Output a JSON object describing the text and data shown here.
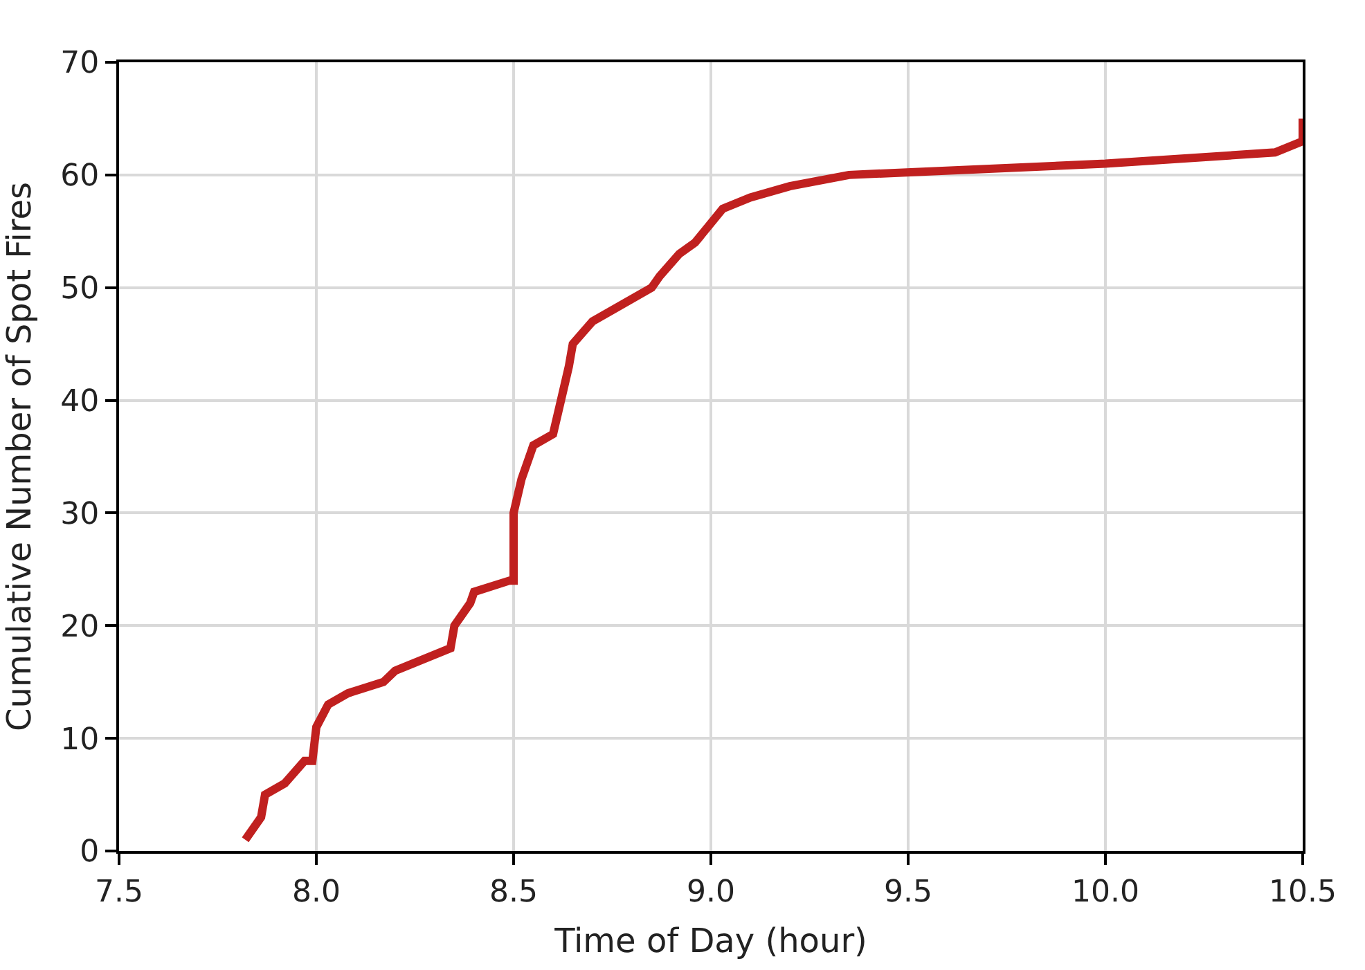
{
  "chart_data": {
    "type": "line",
    "xlabel": "Time of Day (hour)",
    "ylabel": "Cumulative Number of Spot Fires",
    "x": [
      7.82,
      7.86,
      7.87,
      7.92,
      7.97,
      7.99,
      8.0,
      8.03,
      8.08,
      8.17,
      8.2,
      8.34,
      8.35,
      8.39,
      8.4,
      8.49,
      8.5,
      8.5,
      8.52,
      8.55,
      8.6,
      8.62,
      8.64,
      8.65,
      8.7,
      8.75,
      8.85,
      8.87,
      8.92,
      8.96,
      9.03,
      9.1,
      9.2,
      9.35,
      10.0,
      10.43,
      10.5,
      10.5
    ],
    "series": [
      {
        "color": "#c0201f",
        "values": [
          1,
          3,
          5,
          6,
          8,
          8,
          11,
          13,
          14,
          15,
          16,
          18,
          20,
          22,
          23,
          24,
          24,
          30,
          33,
          36,
          37,
          40,
          43,
          45,
          47,
          48,
          50,
          51,
          53,
          54,
          57,
          58,
          59,
          60,
          61,
          62,
          63,
          65
        ]
      }
    ],
    "xlim": [
      7.5,
      10.5
    ],
    "xticks": [
      {
        "value": 7.5,
        "label": "7.5"
      },
      {
        "value": 8,
        "label": "8.0"
      },
      {
        "value": 8.5,
        "label": "8.5"
      },
      {
        "value": 9,
        "label": "9.0"
      },
      {
        "value": 9.5,
        "label": "9.5"
      },
      {
        "value": 10,
        "label": "10.0"
      },
      {
        "value": 10.5,
        "label": "10.5"
      }
    ],
    "ylim": [
      0,
      70
    ],
    "yticks": [
      0,
      10,
      20,
      30,
      40,
      50,
      60,
      70
    ],
    "grid": true,
    "marker": "none",
    "line_style": "solid"
  }
}
